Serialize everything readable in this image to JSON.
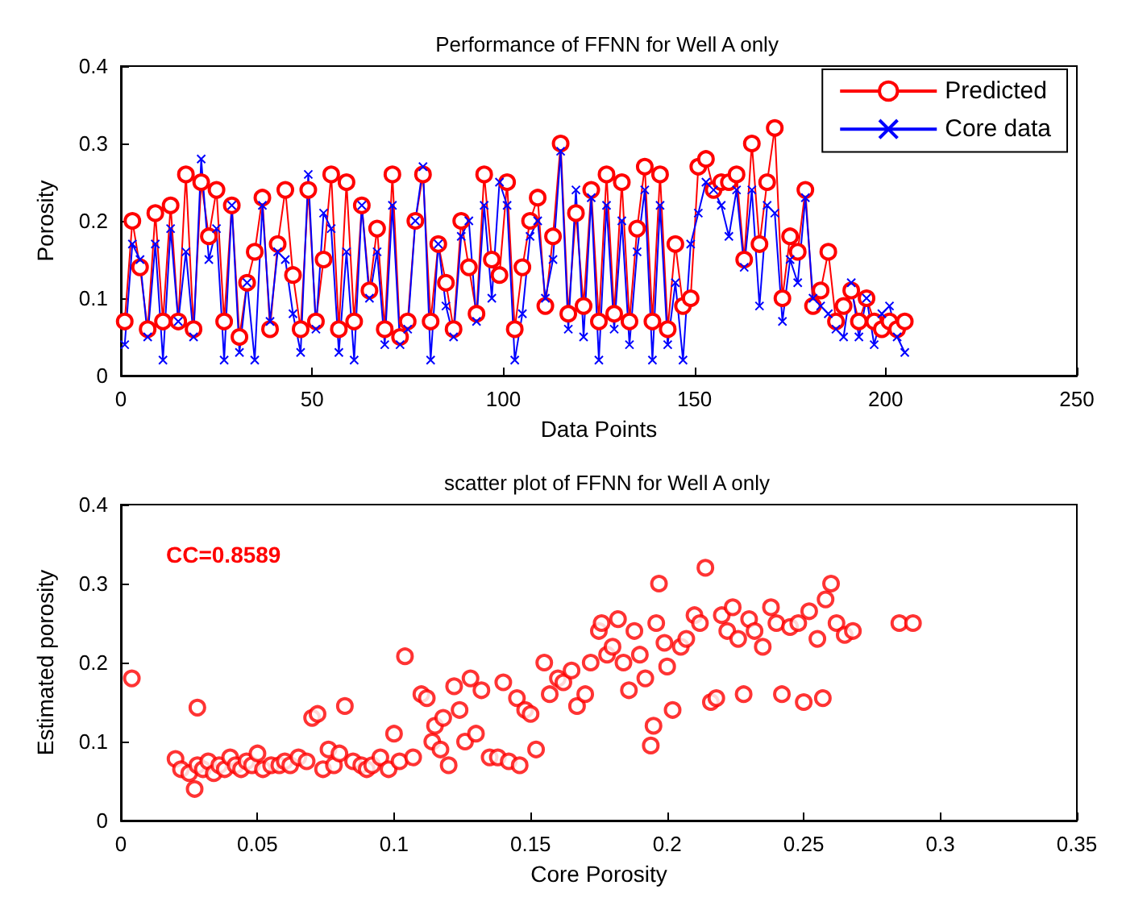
{
  "chart_data": [
    {
      "type": "line",
      "title": "Performance of FFNN for Well A only",
      "xlabel": "Data Points",
      "ylabel": "Porosity",
      "xlim": [
        0,
        250
      ],
      "xticks": [
        0,
        50,
        100,
        150,
        200,
        250
      ],
      "ylim": [
        0,
        0.4
      ],
      "yticks": [
        0,
        0.1,
        0.2,
        0.3,
        0.4
      ],
      "grid": false,
      "legend": "top right",
      "x": [
        1,
        3,
        5,
        7,
        9,
        11,
        13,
        15,
        17,
        19,
        21,
        23,
        25,
        27,
        29,
        31,
        33,
        35,
        37,
        39,
        41,
        43,
        45,
        47,
        49,
        51,
        53,
        55,
        57,
        59,
        61,
        63,
        65,
        67,
        69,
        71,
        73,
        75,
        77,
        79,
        81,
        83,
        85,
        87,
        89,
        91,
        93,
        95,
        97,
        99,
        101,
        103,
        105,
        107,
        109,
        111,
        113,
        115,
        117,
        119,
        121,
        123,
        125,
        127,
        129,
        131,
        133,
        135,
        137,
        139,
        141,
        143,
        145,
        147,
        149,
        151,
        153,
        155,
        157,
        159,
        161,
        163,
        165,
        167,
        169,
        171,
        173,
        175,
        177,
        179,
        181,
        183,
        185,
        187,
        189,
        191,
        193,
        195,
        197,
        199,
        201,
        203,
        205
      ],
      "series": [
        {
          "name": "Predicted",
          "color": "#ff0000",
          "marker": "circle",
          "values": [
            0.07,
            0.2,
            0.14,
            0.06,
            0.21,
            0.07,
            0.22,
            0.07,
            0.26,
            0.06,
            0.25,
            0.18,
            0.24,
            0.07,
            0.22,
            0.05,
            0.12,
            0.16,
            0.23,
            0.06,
            0.17,
            0.24,
            0.13,
            0.06,
            0.24,
            0.07,
            0.15,
            0.26,
            0.06,
            0.25,
            0.07,
            0.22,
            0.11,
            0.19,
            0.06,
            0.26,
            0.05,
            0.07,
            0.2,
            0.26,
            0.07,
            0.17,
            0.12,
            0.06,
            0.2,
            0.14,
            0.08,
            0.26,
            0.15,
            0.13,
            0.25,
            0.06,
            0.14,
            0.2,
            0.23,
            0.09,
            0.18,
            0.3,
            0.08,
            0.21,
            0.09,
            0.24,
            0.07,
            0.26,
            0.08,
            0.25,
            0.07,
            0.19,
            0.27,
            0.07,
            0.26,
            0.06,
            0.17,
            0.09,
            0.1,
            0.27,
            0.28,
            0.24,
            0.25,
            0.25,
            0.26,
            0.15,
            0.3,
            0.17,
            0.25,
            0.32,
            0.1,
            0.18,
            0.16,
            0.24,
            0.09,
            0.11,
            0.16,
            0.07,
            0.09,
            0.11,
            0.07,
            0.1,
            0.07,
            0.06,
            0.07,
            0.06,
            0.07
          ]
        },
        {
          "name": "Core data",
          "color": "#0000ff",
          "marker": "cross",
          "values": [
            0.04,
            0.17,
            0.15,
            0.05,
            0.17,
            0.02,
            0.19,
            0.07,
            0.16,
            0.05,
            0.28,
            0.15,
            0.19,
            0.02,
            0.22,
            0.03,
            0.12,
            0.02,
            0.22,
            0.07,
            0.16,
            0.15,
            0.08,
            0.03,
            0.26,
            0.06,
            0.21,
            0.19,
            0.03,
            0.16,
            0.02,
            0.22,
            0.1,
            0.16,
            0.04,
            0.22,
            0.04,
            0.06,
            0.2,
            0.27,
            0.02,
            0.17,
            0.09,
            0.05,
            0.18,
            0.2,
            0.07,
            0.22,
            0.1,
            0.25,
            0.22,
            0.02,
            0.08,
            0.18,
            0.2,
            0.1,
            0.15,
            0.29,
            0.06,
            0.24,
            0.05,
            0.23,
            0.02,
            0.22,
            0.06,
            0.2,
            0.04,
            0.16,
            0.24,
            0.02,
            0.22,
            0.04,
            0.12,
            0.02,
            0.17,
            0.21,
            0.25,
            0.24,
            0.22,
            0.18,
            0.24,
            0.14,
            0.24,
            0.09,
            0.22,
            0.21,
            0.07,
            0.15,
            0.12,
            0.23,
            0.1,
            0.09,
            0.08,
            0.06,
            0.05,
            0.12,
            0.05,
            0.1,
            0.04,
            0.08,
            0.09,
            0.05,
            0.03
          ]
        }
      ]
    },
    {
      "type": "scatter",
      "title": "scatter plot of FFNN for Well A only",
      "xlabel": "Core Porosity",
      "ylabel": "Estimated porosity",
      "annotations": [
        "CC=0.8589"
      ],
      "xlim": [
        0,
        0.35
      ],
      "xticks": [
        0,
        0.05,
        0.1,
        0.15,
        0.2,
        0.25,
        0.3,
        0.35
      ],
      "ylim": [
        0,
        0.4
      ],
      "yticks": [
        0,
        0.1,
        0.2,
        0.3,
        0.4
      ],
      "grid": false,
      "marker": "circle",
      "series": [
        {
          "color": "#ff0000",
          "x": [
            0.004,
            0.028,
            0.02,
            0.022,
            0.025,
            0.027,
            0.028,
            0.03,
            0.032,
            0.034,
            0.036,
            0.038,
            0.04,
            0.042,
            0.044,
            0.046,
            0.048,
            0.05,
            0.052,
            0.055,
            0.058,
            0.06,
            0.062,
            0.065,
            0.068,
            0.07,
            0.072,
            0.074,
            0.076,
            0.078,
            0.08,
            0.082,
            0.085,
            0.088,
            0.09,
            0.092,
            0.095,
            0.098,
            0.1,
            0.102,
            0.104,
            0.107,
            0.11,
            0.112,
            0.114,
            0.115,
            0.117,
            0.118,
            0.12,
            0.122,
            0.124,
            0.126,
            0.128,
            0.13,
            0.132,
            0.135,
            0.138,
            0.14,
            0.142,
            0.145,
            0.146,
            0.148,
            0.15,
            0.152,
            0.155,
            0.157,
            0.16,
            0.162,
            0.165,
            0.167,
            0.17,
            0.172,
            0.175,
            0.176,
            0.178,
            0.18,
            0.182,
            0.184,
            0.186,
            0.188,
            0.19,
            0.192,
            0.194,
            0.195,
            0.196,
            0.197,
            0.199,
            0.2,
            0.202,
            0.205,
            0.207,
            0.21,
            0.212,
            0.214,
            0.216,
            0.218,
            0.22,
            0.222,
            0.224,
            0.226,
            0.228,
            0.23,
            0.232,
            0.235,
            0.238,
            0.24,
            0.242,
            0.245,
            0.248,
            0.25,
            0.252,
            0.255,
            0.257,
            0.258,
            0.26,
            0.262,
            0.265,
            0.268,
            0.285,
            0.29
          ],
          "values": [
            0.18,
            0.143,
            0.078,
            0.065,
            0.06,
            0.04,
            0.07,
            0.065,
            0.075,
            0.06,
            0.07,
            0.065,
            0.08,
            0.07,
            0.065,
            0.075,
            0.07,
            0.085,
            0.065,
            0.07,
            0.07,
            0.075,
            0.07,
            0.08,
            0.075,
            0.13,
            0.135,
            0.065,
            0.09,
            0.07,
            0.085,
            0.145,
            0.075,
            0.07,
            0.065,
            0.07,
            0.08,
            0.065,
            0.11,
            0.075,
            0.208,
            0.08,
            0.16,
            0.155,
            0.1,
            0.12,
            0.09,
            0.13,
            0.07,
            0.17,
            0.14,
            0.1,
            0.18,
            0.11,
            0.165,
            0.08,
            0.08,
            0.175,
            0.075,
            0.155,
            0.07,
            0.14,
            0.135,
            0.09,
            0.2,
            0.16,
            0.18,
            0.175,
            0.19,
            0.145,
            0.16,
            0.2,
            0.24,
            0.25,
            0.21,
            0.22,
            0.255,
            0.2,
            0.165,
            0.24,
            0.21,
            0.18,
            0.095,
            0.12,
            0.25,
            0.3,
            0.225,
            0.195,
            0.14,
            0.22,
            0.23,
            0.26,
            0.25,
            0.32,
            0.15,
            0.155,
            0.26,
            0.24,
            0.27,
            0.23,
            0.16,
            0.255,
            0.24,
            0.22,
            0.27,
            0.25,
            0.16,
            0.245,
            0.25,
            0.15,
            0.265,
            0.23,
            0.155,
            0.28,
            0.3,
            0.25,
            0.235,
            0.24,
            0.25,
            0.25
          ]
        }
      ]
    }
  ]
}
